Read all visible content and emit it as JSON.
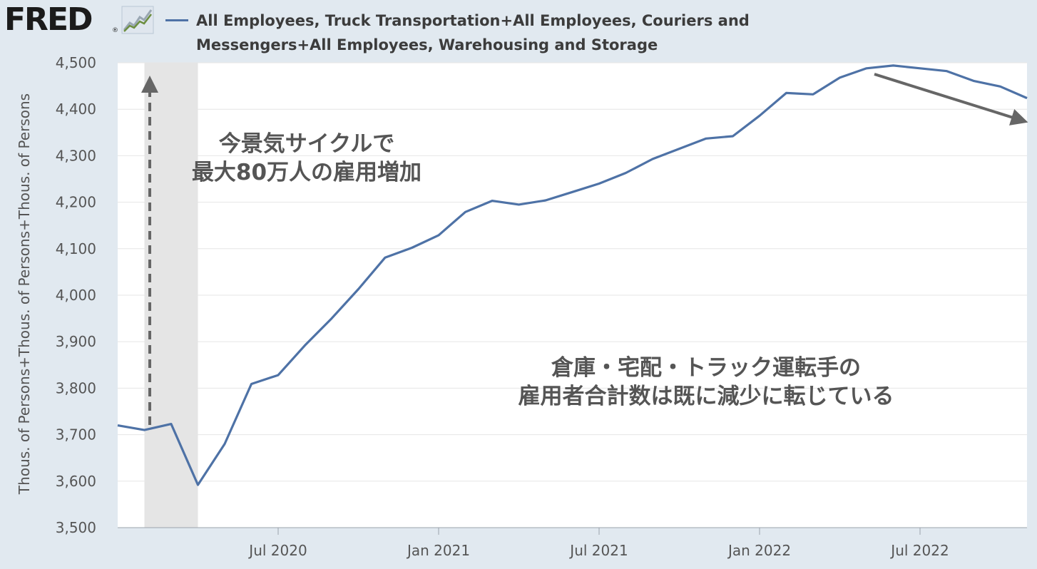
{
  "header": {
    "logo_text": "FRED",
    "logo_mark": "®",
    "logo_icon": "line-chart-icon",
    "legend_line1": "All Employees, Truck Transportation+All Employees, Couriers and",
    "legend_line2": "Messengers+All Employees, Warehousing and Storage"
  },
  "annotations": {
    "left_line1": "今景気サイクルで",
    "left_line2": "最大80万人の雇用増加",
    "right_line1": "倉庫・宅配・トラック運転手の",
    "right_line2": "雇用者合計数は既に減少に転じている"
  },
  "chart_data": {
    "type": "line",
    "title": "",
    "ylabel": "Thous. of Persons+Thous. of Persons+Thous. of Persons",
    "xlabel": "",
    "ylim": [
      3500,
      4500
    ],
    "yticks": [
      3500,
      3600,
      3700,
      3800,
      3900,
      4000,
      4100,
      4200,
      4300,
      4400,
      4500
    ],
    "ytick_labels": [
      "3,500",
      "3,600",
      "3,700",
      "3,800",
      "3,900",
      "4,000",
      "4,100",
      "4,200",
      "4,300",
      "4,400",
      "4,500"
    ],
    "xlim": [
      "2020-01",
      "2022-11"
    ],
    "xticks": [
      {
        "label": "Jul 2020",
        "date": "2020-07"
      },
      {
        "label": "Jan 2021",
        "date": "2021-01"
      },
      {
        "label": "Jul 2021",
        "date": "2021-07"
      },
      {
        "label": "Jan 2022",
        "date": "2022-01"
      },
      {
        "label": "Jul 2022",
        "date": "2022-07"
      }
    ],
    "grid": true,
    "recession_shading": {
      "start": "2020-02",
      "end": "2020-04"
    },
    "series": [
      {
        "color": "#4e72a6",
        "x": [
          "2020-01",
          "2020-02",
          "2020-03",
          "2020-04",
          "2020-05",
          "2020-06",
          "2020-07",
          "2020-08",
          "2020-09",
          "2020-10",
          "2020-11",
          "2020-12",
          "2021-01",
          "2021-02",
          "2021-03",
          "2021-04",
          "2021-05",
          "2021-06",
          "2021-07",
          "2021-08",
          "2021-09",
          "2021-10",
          "2021-11",
          "2021-12",
          "2022-01",
          "2022-02",
          "2022-03",
          "2022-04",
          "2022-05",
          "2022-06",
          "2022-07",
          "2022-08",
          "2022-09",
          "2022-10",
          "2022-11"
        ],
        "y": [
          3720,
          3710,
          3723,
          3592,
          3680,
          3809,
          3828,
          3892,
          3950,
          4013,
          4081,
          4102,
          4129,
          4179,
          4203,
          4195,
          4204,
          4222,
          4240,
          4263,
          4293,
          4315,
          4337,
          4342,
          4386,
          4435,
          4432,
          4468,
          4488,
          4494,
          4488,
          4482,
          4461,
          4449,
          4424
        ]
      }
    ]
  }
}
